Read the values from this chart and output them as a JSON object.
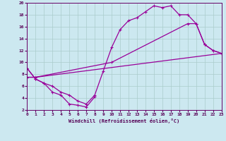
{
  "bg_color": "#cce8f0",
  "line_color": "#990099",
  "grid_color": "#aacccc",
  "xlabel": "Windchill (Refroidissement éolien,°C)",
  "xlim": [
    0,
    23
  ],
  "ylim": [
    2,
    20
  ],
  "xticks": [
    0,
    1,
    2,
    3,
    4,
    5,
    6,
    7,
    8,
    9,
    10,
    11,
    12,
    13,
    14,
    15,
    16,
    17,
    18,
    19,
    20,
    21,
    22,
    23
  ],
  "yticks": [
    2,
    4,
    6,
    8,
    10,
    12,
    14,
    16,
    18,
    20
  ],
  "curve1_x": [
    0,
    1,
    2,
    3,
    4,
    5,
    6,
    7,
    8,
    9,
    10,
    11,
    12,
    13,
    14,
    15,
    16,
    17,
    18,
    19,
    20,
    21,
    22,
    23
  ],
  "curve1_y": [
    9,
    7.2,
    6.5,
    6,
    5,
    4.5,
    3.5,
    3,
    4.5,
    8.5,
    12.5,
    15.5,
    17,
    17.5,
    18.5,
    19.5,
    19.2,
    19.5,
    18,
    18,
    16.5,
    13,
    12,
    11.5
  ],
  "curve2_x": [
    0,
    1,
    2,
    3,
    4,
    5,
    6,
    7,
    8
  ],
  "curve2_y": [
    9,
    7.2,
    6.5,
    5,
    4.5,
    3,
    2.8,
    2.5,
    4.2
  ],
  "line3_x": [
    0,
    1,
    23
  ],
  "line3_y": [
    7.5,
    7.5,
    11.5
  ],
  "line4_x": [
    0,
    1,
    10,
    19,
    20,
    21,
    22,
    23
  ],
  "line4_y": [
    7.5,
    7.5,
    10,
    16.5,
    16.5,
    13,
    12,
    11.5
  ],
  "lw": 0.9,
  "markersize": 2.5,
  "marker": "+"
}
